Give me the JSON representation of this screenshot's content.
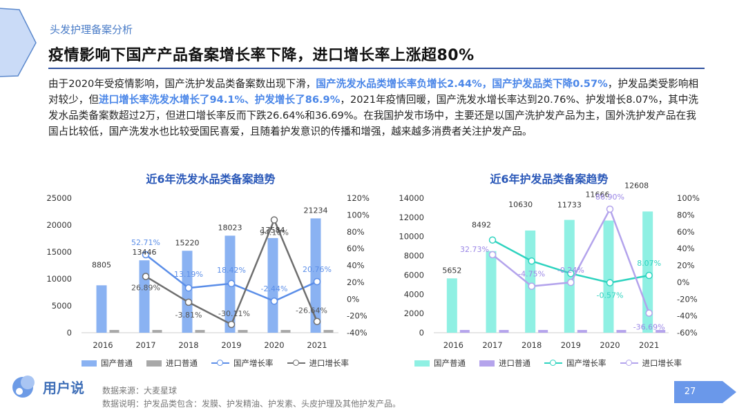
{
  "header": {
    "section": "头发护理备案分析",
    "title": "疫情影响下国产产品备案增长率下降，进口增长率上涨超80%"
  },
  "intro": {
    "s1": "由于2020年受疫情影响，国产洗护发品类备案数出现下滑，",
    "h1": "国产洗发水品类增长率负增长2.44%，国产护发品类下降0.57%",
    "s2": "，护发品类受影响相对较少，但",
    "h2": "进口增长率洗发水增长了94.1%、护发增长了86.9%",
    "s3": "，2021年疫情回暖，国产洗发水增长率达到20.76%、护发增长8.07%，其中洗发水品类备案数超过2万，但进口增长率反而下跌26.64%和36.69%。在我国护发市场中，主要还是以国产洗护发产品为主，国外洗护发产品在我国占比较低，国产洗发水也比较受国民喜爱，且随着护发意识的传播和增强，越来越多消费者关注护发产品。"
  },
  "chart_data": [
    {
      "type": "bar",
      "title": "近6年洗发水品类备案趋势",
      "categories": [
        "2016",
        "2017",
        "2018",
        "2019",
        "2020",
        "2021"
      ],
      "series": [
        {
          "name": "国产普通",
          "kind": "bar",
          "axis": "left",
          "color": "#8ab2f2",
          "values": [
            8805,
            13446,
            15220,
            18023,
            17584,
            21234
          ]
        },
        {
          "name": "进口普通",
          "kind": "bar",
          "axis": "left",
          "color": "#a8a8a8",
          "values": [
            null,
            null,
            null,
            null,
            null,
            null
          ]
        },
        {
          "name": "国产增长率",
          "kind": "line",
          "axis": "right",
          "color": "#5b8ee8",
          "values": [
            null,
            52.71,
            13.19,
            18.42,
            -2.44,
            20.76
          ]
        },
        {
          "name": "进口增长率",
          "kind": "line",
          "axis": "right",
          "color": "#6e6e6e",
          "values": [
            null,
            26.89,
            -3.81,
            -30.11,
            94.1,
            -26.64
          ]
        }
      ],
      "bar_labels": [
        "8805",
        "13446",
        "15220",
        "18023",
        "17584",
        "21234"
      ],
      "dom_labels": [
        "",
        "52.71%",
        "13.19%",
        "18.42%",
        "-2.44%",
        "20.76%"
      ],
      "imp_labels": [
        "",
        "26.89%",
        "-3.81%",
        "-30.11%",
        "94.10%",
        "-26.64%"
      ],
      "ylim_left": [
        0,
        25000
      ],
      "yticks_left": [
        "0",
        "5000",
        "10000",
        "15000",
        "20000",
        "25000"
      ],
      "ylim_right": [
        -40,
        120
      ],
      "yticks_right": [
        "-40%",
        "-20%",
        "0%",
        "20%",
        "40%",
        "60%",
        "80%",
        "100%",
        "120%"
      ],
      "legend": "bottom"
    },
    {
      "type": "bar",
      "title": "近6年护发品类备案趋势",
      "categories": [
        "2016",
        "2017",
        "2018",
        "2019",
        "2020",
        "2021"
      ],
      "series": [
        {
          "name": "国产普通",
          "kind": "bar",
          "axis": "left",
          "color": "#8ff0e3",
          "values": [
            5652,
            8492,
            10630,
            11733,
            11666,
            12608
          ]
        },
        {
          "name": "进口普通",
          "kind": "bar",
          "axis": "left",
          "color": "#b5a4ec",
          "values": [
            null,
            null,
            null,
            null,
            null,
            null
          ]
        },
        {
          "name": "国产增长率",
          "kind": "line",
          "axis": "right",
          "color": "#2ed3bf",
          "values": [
            null,
            50.2,
            25.2,
            10.4,
            -0.57,
            8.07
          ]
        },
        {
          "name": "进口增长率",
          "kind": "line",
          "axis": "right",
          "color": "#b3a3ec",
          "values": [
            null,
            32.73,
            -4.75,
            -0.24,
            86.9,
            -36.69
          ]
        }
      ],
      "bar_labels": [
        "5652",
        "8492",
        "10630",
        "11733",
        "11666",
        "12608"
      ],
      "dom_labels": [
        "",
        "",
        "",
        "",
        "-0.57%",
        "8.07%"
      ],
      "imp_labels": [
        "",
        "32.73%",
        "-4.75%",
        "-0.24%",
        "86.90%",
        "-36.69%"
      ],
      "ylim_left": [
        0,
        14000
      ],
      "yticks_left": [
        "0",
        "2000",
        "4000",
        "6000",
        "8000",
        "10000",
        "12000",
        "14000"
      ],
      "ylim_right": [
        -60,
        100
      ],
      "yticks_right": [
        "-60%",
        "-40%",
        "-20%",
        "0%",
        "20%",
        "40%",
        "60%",
        "80%",
        "100%"
      ],
      "legend": "bottom"
    }
  ],
  "legend_labels": [
    "国产普通",
    "进口普通",
    "国产增长率",
    "进口增长率"
  ],
  "footer": {
    "logo": "用户说",
    "source": "数据来源：大麦星球",
    "note": "数据说明：护发品类包含：发膜、护发精油、护发素、头皮护理及其他护发产品。",
    "page": "27"
  },
  "colors": {
    "accent": "#2c4f9e",
    "highlight": "#4a86e8",
    "page_badge": "#6a98ea"
  }
}
